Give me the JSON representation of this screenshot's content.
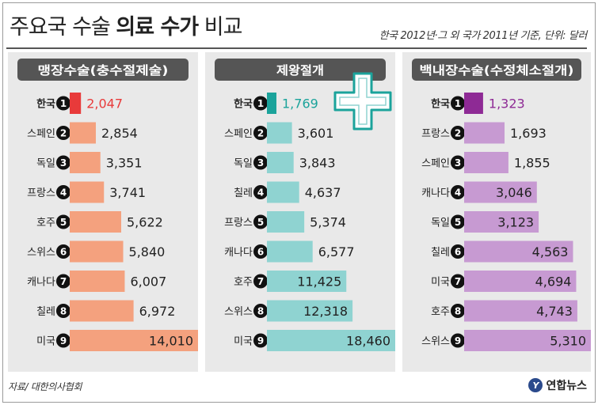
{
  "header": {
    "title_light": "주요국 수술",
    "title_bold": "의료 수가",
    "title_tail": "비교",
    "note": "한국 2012년·그 외 국가 2011년 기준, 단위: 달러"
  },
  "footer": {
    "source": "자료/ 대한의사협회",
    "brand": "연합뉴스",
    "brand_icon": "Y"
  },
  "colors": {
    "panel_bg": "#e9e9e9",
    "header_bg": "#555555",
    "header_text": "#ffffff",
    "highlight": [
      "#e83a3a",
      "#1ba39b",
      "#8e2a95"
    ],
    "bars": [
      "#f4a17e",
      "#8fd3d1",
      "#c79ad2"
    ]
  },
  "chart_data": [
    {
      "type": "bar",
      "orientation": "horizontal",
      "title": "맹장수술(충수절제술)",
      "categories": [
        "한국",
        "스페인",
        "독일",
        "프랑스",
        "호주",
        "스위스",
        "캐나다",
        "칠레",
        "미국"
      ],
      "values": [
        2047,
        2854,
        3351,
        3741,
        5622,
        5840,
        6007,
        6972,
        14010
      ],
      "value_labels": [
        "2,047",
        "2,854",
        "3,351",
        "3,741",
        "5,622",
        "5,840",
        "6,007",
        "6,972",
        "14,010"
      ],
      "ranks": [
        "1",
        "2",
        "3",
        "4",
        "5",
        "6",
        "7",
        "8",
        "9"
      ]
    },
    {
      "type": "bar",
      "orientation": "horizontal",
      "title": "제왕절개",
      "categories": [
        "한국",
        "스페인",
        "독일",
        "칠레",
        "프랑스",
        "캐나다",
        "호주",
        "스위스",
        "미국"
      ],
      "values": [
        1769,
        3601,
        3843,
        4637,
        5374,
        6577,
        11425,
        12318,
        18460
      ],
      "value_labels": [
        "1,769",
        "3,601",
        "3,843",
        "4,637",
        "5,374",
        "6,577",
        "11,425",
        "12,318",
        "18,460"
      ],
      "ranks": [
        "1",
        "2",
        "3",
        "4",
        "5",
        "6",
        "7",
        "8",
        "9"
      ]
    },
    {
      "type": "bar",
      "orientation": "horizontal",
      "title": "백내장수술(수정체소절개)",
      "categories": [
        "한국",
        "프랑스",
        "스페인",
        "캐나다",
        "독일",
        "칠레",
        "미국",
        "호주",
        "스위스"
      ],
      "values": [
        1323,
        1693,
        1855,
        3046,
        3123,
        4563,
        4694,
        4743,
        5310
      ],
      "value_labels": [
        "1,323",
        "1,693",
        "1,855",
        "3,046",
        "3,123",
        "4,563",
        "4,694",
        "4,743",
        "5,310"
      ],
      "ranks": [
        "1",
        "2",
        "3",
        "4",
        "5",
        "6",
        "7",
        "8",
        "9"
      ]
    }
  ]
}
